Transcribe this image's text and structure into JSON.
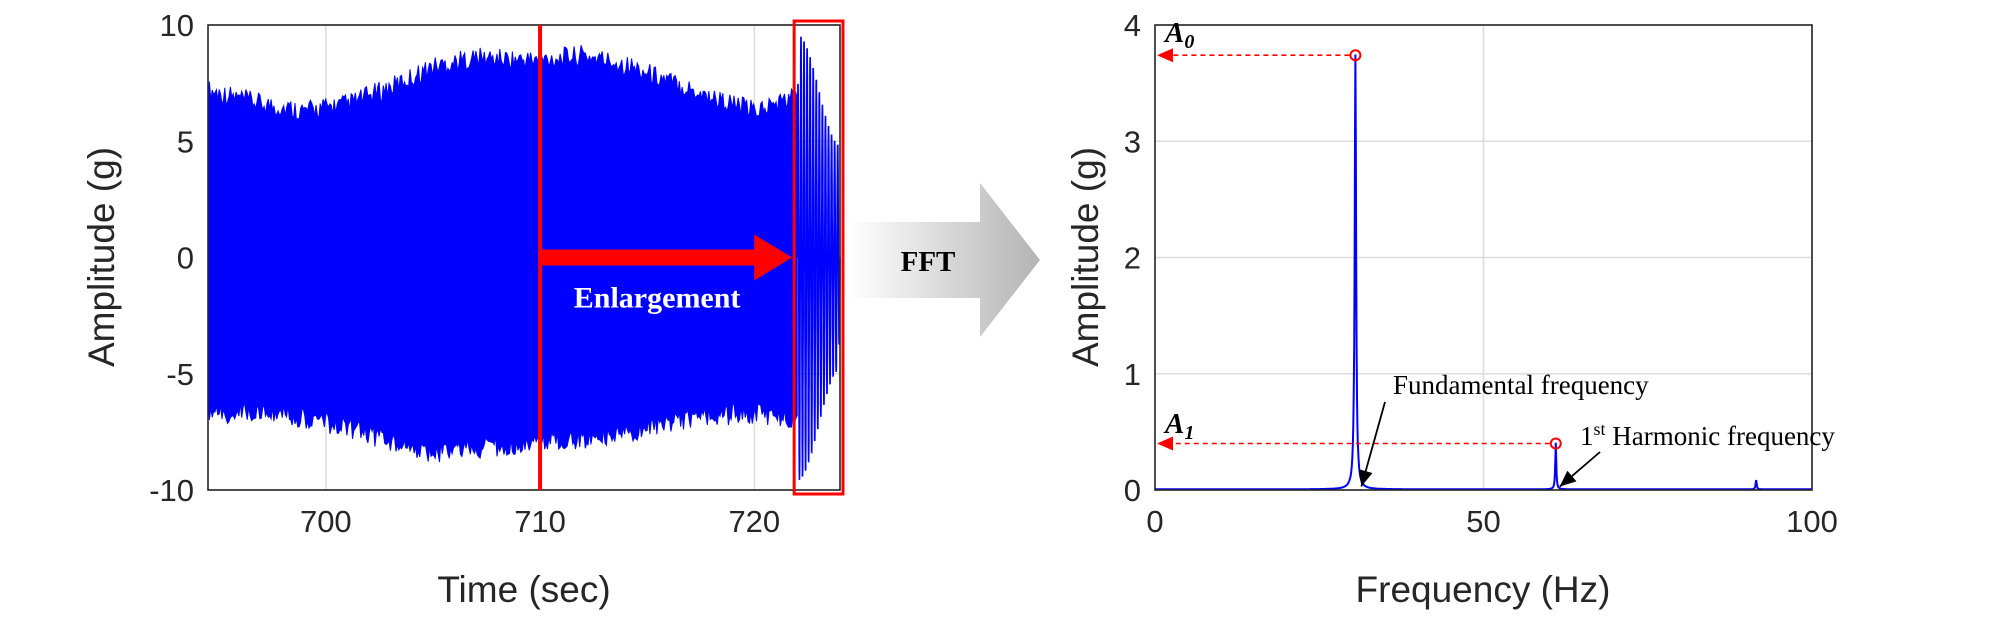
{
  "chart_data": [
    {
      "type": "line",
      "xlabel": "Time (sec)",
      "ylabel": "Amplitude (g)",
      "xlim": [
        694.5,
        724
      ],
      "ylim": [
        -10,
        10
      ],
      "xticks": [
        "700",
        "710",
        "720"
      ],
      "yticks": [
        "10",
        "5",
        "0",
        "-5",
        "-10"
      ],
      "grid": true,
      "series_color": "#0000ff",
      "envelope": {
        "x": [
          694.5,
          697,
          699,
          701,
          703,
          705,
          707,
          709,
          710,
          712,
          714,
          716,
          718,
          720,
          721,
          722
        ],
        "upper": [
          7.2,
          6.6,
          6.3,
          6.6,
          7.3,
          8.2,
          8.6,
          8.5,
          8.5,
          8.7,
          8.3,
          7.6,
          6.9,
          6.3,
          6.6,
          7.0
        ],
        "lower": [
          -6.8,
          -6.6,
          -6.9,
          -7.3,
          -7.9,
          -8.4,
          -8.2,
          -8.0,
          -7.8,
          -7.9,
          -7.6,
          -7.1,
          -6.8,
          -6.7,
          -6.9,
          -7.0
        ]
      },
      "enlarged_segment": {
        "x_range": [
          722,
          724
        ],
        "peak_amplitude": 9.6,
        "cycles": 14
      },
      "annotations": {
        "marker_time": 710,
        "arrow_label": "Enlargement",
        "arrow_color": "#ff0000"
      }
    },
    {
      "type": "line",
      "xlabel": "Frequency (Hz)",
      "ylabel": "Amplitude (g)",
      "xlim": [
        0,
        100
      ],
      "ylim": [
        0,
        4
      ],
      "xticks": [
        "0",
        "50",
        "100"
      ],
      "yticks": [
        "4",
        "3",
        "2",
        "1",
        "0"
      ],
      "grid": true,
      "series_color": "#0000ff",
      "peaks": [
        {
          "x": 30.5,
          "y": 3.74
        },
        {
          "x": 61.0,
          "y": 0.4
        },
        {
          "x": 91.5,
          "y": 0.08
        }
      ],
      "annotations": {
        "a0_label": "A",
        "a0_sub": "0",
        "a1_label": "A",
        "a1_sub": "1",
        "fundamental_label": "Fundamental frequency",
        "harmonic_sup": "st",
        "harmonic_num": "1",
        "harmonic_label": " Harmonic frequency",
        "guide_color": "#ff0000"
      }
    }
  ],
  "transform_arrow": {
    "label": "FFT",
    "color": "#b3b3b3"
  }
}
